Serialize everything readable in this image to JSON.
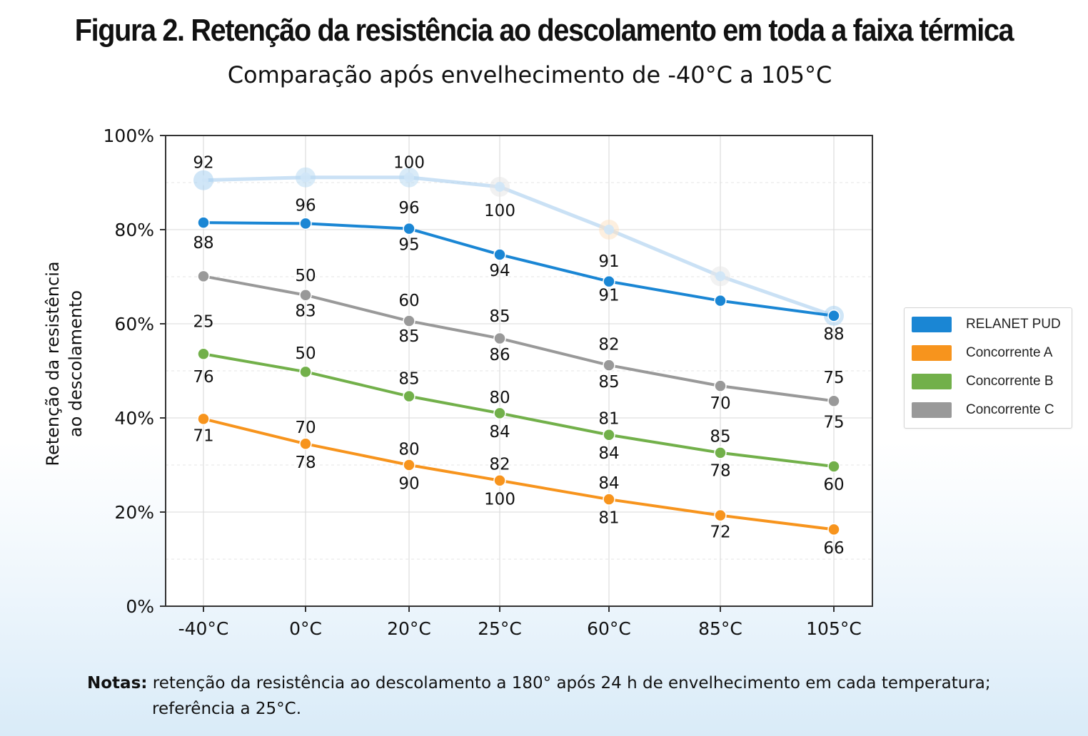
{
  "title": "Figura 2. Retenção da resistência ao descolamento em toda a faixa térmica",
  "subtitle": "Comparação após envelhecimento de -40°C a 105°C",
  "notes": {
    "label": "Notas:",
    "line1": "retenção da resistência ao descolamento a 180° após 24 h de envelhecimento em cada temperatura;",
    "line2": "referência a 25°C."
  },
  "chart_data": {
    "type": "line",
    "title": "Figura 2. Retenção da resistência ao descolamento em toda a faixa térmica",
    "subtitle": "Comparação após envelhecimento de -40°C a 105°C",
    "xlabel": "",
    "ylabel": "Retenção da resistência ao descolamento",
    "ylim": [
      0,
      100
    ],
    "y_ticks": [
      "0%",
      "20%",
      "40%",
      "60%",
      "80%",
      "100%"
    ],
    "categories": [
      "-40°C",
      "0°C",
      "20°C",
      "25°C",
      "60°C",
      "85°C",
      "105°C"
    ],
    "grid": true,
    "legend_position": "right",
    "series": [
      {
        "name": "RELANET PUD",
        "color": "#1a86d4",
        "values": [
          81.5,
          81.3,
          80.2,
          74.7,
          69.0,
          64.9,
          61.7
        ]
      },
      {
        "name": "Concorrente A",
        "color": "#f7941d",
        "values": [
          39.8,
          34.5,
          30.0,
          26.7,
          22.7,
          19.3,
          16.3
        ]
      },
      {
        "name": "Concorrente B",
        "color": "#72b04a",
        "values": [
          53.6,
          49.8,
          44.6,
          41.0,
          36.4,
          32.6,
          29.7
        ]
      },
      {
        "name": "Concorrente C",
        "color": "#999999",
        "values": [
          70.1,
          66.1,
          60.6,
          56.9,
          51.2,
          46.8,
          43.6
        ]
      }
    ],
    "faded_series": {
      "color": "#9fc9ec",
      "values": [
        90.5,
        91.1,
        91.1,
        89.1,
        80.0,
        70.1,
        61.7
      ]
    },
    "annotations": [
      {
        "text": "92",
        "x": "-40°C",
        "y": 94.3
      },
      {
        "text": "100",
        "x": "20°C",
        "y": 94.3
      },
      {
        "text": "96",
        "x": "0°C",
        "y": 85.2
      },
      {
        "text": "96",
        "x": "20°C",
        "y": 84.7
      },
      {
        "text": "100",
        "x": "25°C",
        "y": 84.1
      },
      {
        "text": "88",
        "x": "-40°C",
        "y": 77.3
      },
      {
        "text": "95",
        "x": "20°C",
        "y": 76.9
      },
      {
        "text": "94",
        "x": "25°C",
        "y": 71.4
      },
      {
        "text": "91",
        "x": "60°C",
        "y": 73.3
      },
      {
        "text": "91",
        "x": "60°C",
        "y": 66.1
      },
      {
        "text": "88",
        "x": "105°C",
        "y": 57.9
      },
      {
        "text": "50",
        "x": "0°C",
        "y": 70.3
      },
      {
        "text": "83",
        "x": "0°C",
        "y": 62.8
      },
      {
        "text": "60",
        "x": "20°C",
        "y": 65.0
      },
      {
        "text": "85",
        "x": "20°C",
        "y": 57.4
      },
      {
        "text": "85",
        "x": "25°C",
        "y": 61.7
      },
      {
        "text": "86",
        "x": "25°C",
        "y": 53.5
      },
      {
        "text": "82",
        "x": "60°C",
        "y": 55.7
      },
      {
        "text": "85",
        "x": "60°C",
        "y": 47.7
      },
      {
        "text": "70",
        "x": "85°C",
        "y": 43.2
      },
      {
        "text": "75",
        "x": "105°C",
        "y": 48.6
      },
      {
        "text": "75",
        "x": "105°C",
        "y": 39.2
      },
      {
        "text": "25",
        "x": "-40°C",
        "y": 60.5
      },
      {
        "text": "76",
        "x": "-40°C",
        "y": 48.8
      },
      {
        "text": "50",
        "x": "0°C",
        "y": 53.8
      },
      {
        "text": "85",
        "x": "20°C",
        "y": 48.4
      },
      {
        "text": "80",
        "x": "25°C",
        "y": 44.4
      },
      {
        "text": "84",
        "x": "25°C",
        "y": 37.1
      },
      {
        "text": "81",
        "x": "60°C",
        "y": 39.9
      },
      {
        "text": "84",
        "x": "60°C",
        "y": 32.6
      },
      {
        "text": "85",
        "x": "85°C",
        "y": 36.1
      },
      {
        "text": "78",
        "x": "85°C",
        "y": 28.9
      },
      {
        "text": "60",
        "x": "105°C",
        "y": 25.9
      },
      {
        "text": "71",
        "x": "-40°C",
        "y": 36.3
      },
      {
        "text": "70",
        "x": "0°C",
        "y": 38.0
      },
      {
        "text": "78",
        "x": "0°C",
        "y": 30.6
      },
      {
        "text": "80",
        "x": "20°C",
        "y": 33.4
      },
      {
        "text": "90",
        "x": "20°C",
        "y": 26.1
      },
      {
        "text": "82",
        "x": "25°C",
        "y": 30.2
      },
      {
        "text": "100",
        "x": "25°C",
        "y": 22.8
      },
      {
        "text": "84",
        "x": "60°C",
        "y": 26.2
      },
      {
        "text": "81",
        "x": "60°C",
        "y": 18.9
      },
      {
        "text": "72",
        "x": "85°C",
        "y": 15.8
      },
      {
        "text": "66",
        "x": "105°C",
        "y": 12.4
      }
    ]
  }
}
